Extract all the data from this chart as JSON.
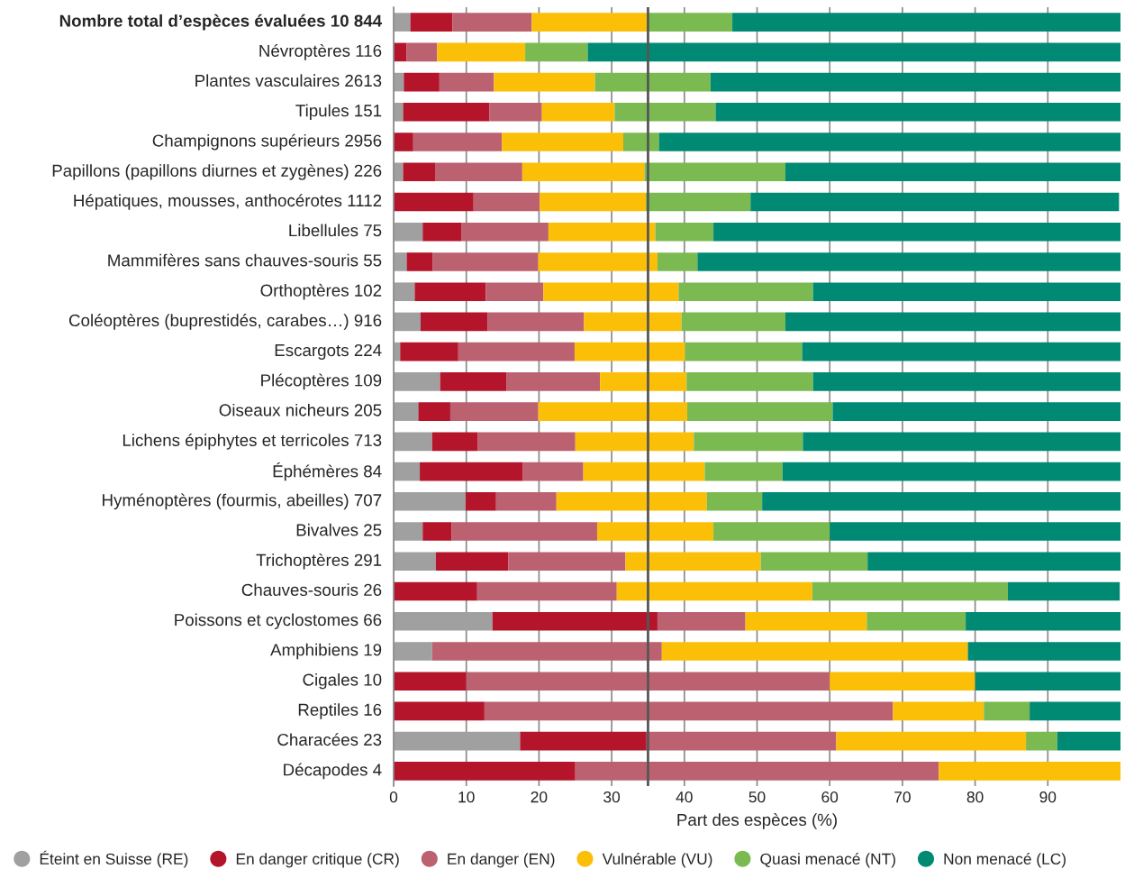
{
  "chart_data": {
    "type": "bar",
    "orientation": "horizontal",
    "stacked": true,
    "xlabel": "Part des espèces (%)",
    "categories": [
      "Nombre total d’espèces évaluées 10 844",
      "Névroptères 116",
      "Plantes vasculaires 2613",
      "Tipules 151",
      "Champignons supérieurs 2956",
      "Papillons (papillons diurnes et zygènes) 226",
      "Hépatiques, mousses, anthocérotes 1112",
      "Libellules 75",
      "Mammifères sans chauves-souris 55",
      "Orthoptères 102",
      "Coléoptères (buprestidés, carabes…) 916",
      "Escargots 224",
      "Plécoptères 109",
      "Oiseaux nicheurs 205",
      "Lichens épiphytes et terricoles 713",
      "Éphémères 84",
      "Hyménoptères (fourmis, abeilles) 707",
      "Bivalves 25",
      "Trichoptères 291",
      "Chauves-souris 26",
      "Poissons et cyclostomes 66",
      "Amphibiens 19",
      "Cigales 10",
      "Reptiles 16",
      "Characées 23",
      "Décapodes 4"
    ],
    "series": [
      {
        "name": "Éteint en Suisse (RE)",
        "color": "#a0a0a0",
        "values": [
          2.3,
          0,
          1.4,
          1.3,
          0,
          1.3,
          null,
          4.0,
          1.8,
          2.9,
          3.7,
          0.9,
          6.4,
          3.4,
          5.3,
          3.6,
          9.9,
          4,
          5.8,
          0,
          13.6,
          5.3,
          0,
          0,
          17.4,
          0
        ]
      },
      {
        "name": "En danger critique (CR)",
        "color": "#b5152b",
        "values": [
          5.8,
          1.8,
          4.9,
          11.9,
          2.7,
          4.4,
          11.0,
          5.3,
          3.6,
          9.8,
          9.2,
          8.0,
          9.1,
          4.4,
          6.3,
          14.2,
          4.2,
          4,
          10.0,
          11.5,
          22.7,
          0,
          10,
          12.5,
          17.4,
          25
        ]
      },
      {
        "name": "En danger (EN)",
        "color": "#bb6170",
        "values": [
          10.9,
          4.2,
          7.5,
          7.2,
          12.2,
          12.0,
          9.1,
          12.0,
          14.5,
          7.9,
          13.3,
          16.0,
          12.9,
          12.1,
          13.4,
          8.3,
          8.3,
          20,
          16.1,
          19.2,
          12.1,
          31.6,
          50,
          56.2,
          26.1,
          50
        ]
      },
      {
        "name": "Vulnérable (VU)",
        "color": "#fbbf07",
        "values": [
          15.9,
          12.1,
          13.9,
          10.0,
          16.7,
          16.8,
          14.6,
          14.7,
          16.4,
          18.6,
          13.4,
          15.2,
          11.9,
          20.5,
          16.3,
          16.7,
          20.7,
          16,
          18.6,
          26.9,
          16.7,
          42.1,
          20,
          12.5,
          26.1,
          25
        ]
      },
      {
        "name": "Quasi menacé (NT)",
        "color": "#7aba51",
        "values": [
          11.7,
          8.6,
          15.9,
          13.9,
          4.9,
          19.4,
          14.4,
          8.0,
          5.5,
          18.5,
          14.3,
          16.1,
          17.4,
          20.0,
          15.0,
          10.7,
          7.6,
          16,
          14.7,
          26.9,
          13.6,
          0,
          0,
          6.3,
          4.3,
          0
        ]
      },
      {
        "name": "Non menacé (LC)",
        "color": "#008a74",
        "values": [
          53.4,
          73.3,
          56.4,
          55.7,
          63.5,
          46.1,
          50.7,
          56.0,
          58.2,
          42.3,
          46.1,
          43.8,
          42.3,
          39.6,
          43.7,
          46.5,
          49.3,
          40,
          34.8,
          15.4,
          21.3,
          21.1,
          20,
          12.5,
          8.7,
          0
        ]
      }
    ],
    "xlim": [
      0,
      100
    ],
    "xticks": [
      0,
      10,
      20,
      30,
      40,
      50,
      60,
      70,
      80,
      90
    ],
    "ref_lines": [
      {
        "axis": "x",
        "value": 35,
        "color": "#555555"
      }
    ],
    "grid": "x",
    "legend": "bottom"
  }
}
